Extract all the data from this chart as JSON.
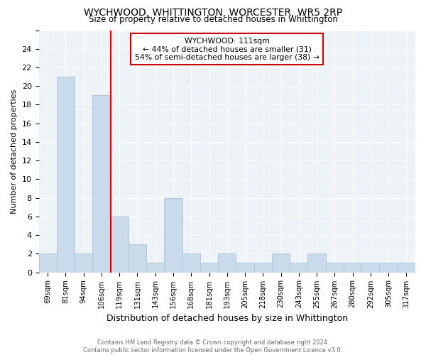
{
  "title": "WYCHWOOD, WHITTINGTON, WORCESTER, WR5 2RP",
  "subtitle": "Size of property relative to detached houses in Whittington",
  "xlabel": "Distribution of detached houses by size in Whittington",
  "ylabel": "Number of detached properties",
  "footer_line1": "Contains HM Land Registry data © Crown copyright and database right 2024.",
  "footer_line2": "Contains public sector information licensed under the Open Government Licence v3.0.",
  "categories": [
    "69sqm",
    "81sqm",
    "94sqm",
    "106sqm",
    "119sqm",
    "131sqm",
    "143sqm",
    "156sqm",
    "168sqm",
    "181sqm",
    "193sqm",
    "205sqm",
    "218sqm",
    "230sqm",
    "243sqm",
    "255sqm",
    "267sqm",
    "280sqm",
    "292sqm",
    "305sqm",
    "317sqm"
  ],
  "values": [
    2,
    21,
    2,
    19,
    6,
    3,
    1,
    8,
    2,
    1,
    2,
    1,
    1,
    2,
    1,
    2,
    1,
    1,
    1,
    1,
    1
  ],
  "bar_color": "#c9daea",
  "bar_edge_color": "#b0c8dc",
  "vline_x_index": 4,
  "vline_color": "#cc0000",
  "annotation_title": "WYCHWOOD: 111sqm",
  "annotation_line1": "← 44% of detached houses are smaller (31)",
  "annotation_line2": "54% of semi-detached houses are larger (38) →",
  "annotation_box_color": "#cc0000",
  "ylim": [
    0,
    26
  ],
  "yticks": [
    0,
    2,
    4,
    6,
    8,
    10,
    12,
    14,
    16,
    18,
    20,
    22,
    24,
    26
  ],
  "background_color": "#ffffff",
  "plot_bg_color": "#eef3f8",
  "grid_color": "#ffffff"
}
